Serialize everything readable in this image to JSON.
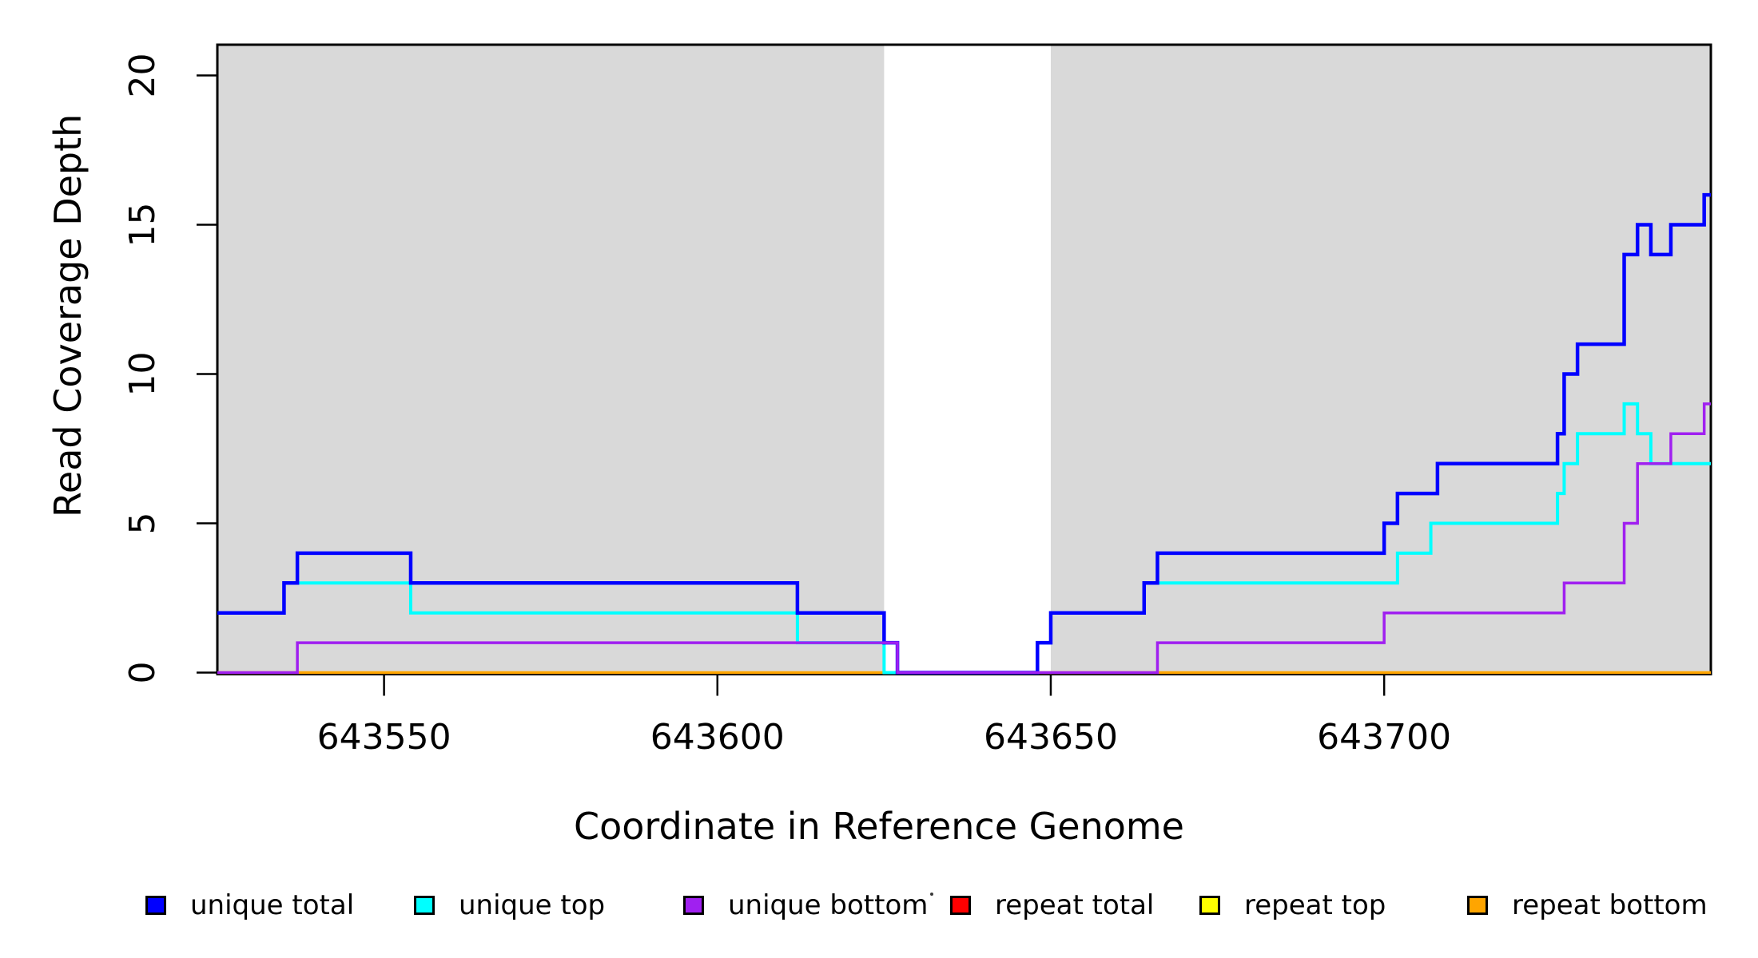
{
  "figure": {
    "x_axis_title": "Coordinate in Reference Genome",
    "y_axis_title": "Read Coverage Depth",
    "legend": [
      {
        "label": "unique total",
        "color": "#0000FF"
      },
      {
        "label": "unique top",
        "color": "#00FFFF"
      },
      {
        "label": "unique bottom",
        "color": "#A020F0"
      },
      {
        "label": "repeat total",
        "color": "#FF0000"
      },
      {
        "label": "repeat top",
        "color": "#FFFF00"
      },
      {
        "label": "repeat bottom",
        "color": "#FFA500"
      }
    ]
  },
  "chart_data": {
    "type": "line",
    "subtype": "step-post",
    "title": "",
    "xlabel": "Coordinate in Reference Genome",
    "ylabel": "Read Coverage Depth",
    "x_range": [
      643525,
      643749
    ],
    "y_range": [
      0,
      21
    ],
    "x_ticks": [
      643550,
      643600,
      643650,
      643700
    ],
    "y_ticks": [
      0,
      5,
      10,
      15,
      20
    ],
    "grid": false,
    "legend_position": "bottom",
    "background_color": "#FFFFFF",
    "shaded_regions": [
      {
        "x0": 643525,
        "x1": 643625,
        "color": "#D9D9D9",
        "meaning": "covered reference segment"
      },
      {
        "x0": 643650,
        "x1": 643749,
        "color": "#D9D9D9",
        "meaning": "covered reference segment"
      }
    ],
    "series": [
      {
        "name": "repeat total",
        "color": "#FF0000",
        "width": 3,
        "points": [
          [
            643525,
            0
          ]
        ]
      },
      {
        "name": "repeat top",
        "color": "#FFFF00",
        "width": 3,
        "points": [
          [
            643525,
            0
          ]
        ]
      },
      {
        "name": "repeat bottom",
        "color": "#FFA500",
        "width": 3.5,
        "points": [
          [
            643525,
            0
          ]
        ]
      },
      {
        "name": "unique top",
        "color": "#00FFFF",
        "width": 4,
        "points": [
          [
            643525,
            2
          ],
          [
            643535,
            3
          ],
          [
            643554,
            2
          ],
          [
            643612,
            1
          ],
          [
            643625,
            0
          ],
          [
            643648,
            1
          ],
          [
            643650,
            2
          ],
          [
            643664,
            3
          ],
          [
            643702,
            4
          ],
          [
            643707,
            5
          ],
          [
            643726,
            6
          ],
          [
            643727,
            7
          ],
          [
            643729,
            8
          ],
          [
            643736,
            9
          ],
          [
            643738,
            8
          ],
          [
            643740,
            7
          ]
        ]
      },
      {
        "name": "unique total",
        "color": "#0000FF",
        "width": 4.5,
        "points": [
          [
            643525,
            2
          ],
          [
            643535,
            3
          ],
          [
            643537,
            4
          ],
          [
            643554,
            3
          ],
          [
            643612,
            2
          ],
          [
            643625,
            1
          ],
          [
            643627,
            0
          ],
          [
            643648,
            1
          ],
          [
            643650,
            2
          ],
          [
            643664,
            3
          ],
          [
            643666,
            4
          ],
          [
            643700,
            5
          ],
          [
            643702,
            6
          ],
          [
            643708,
            7
          ],
          [
            643726,
            8
          ],
          [
            643727,
            10
          ],
          [
            643729,
            11
          ],
          [
            643736,
            14
          ],
          [
            643738,
            15
          ],
          [
            643740,
            14
          ],
          [
            643743,
            15
          ],
          [
            643748,
            16
          ]
        ]
      },
      {
        "name": "unique bottom",
        "color": "#A020F0",
        "width": 3.5,
        "points": [
          [
            643525,
            0
          ],
          [
            643537,
            1
          ],
          [
            643627,
            0
          ],
          [
            643666,
            1
          ],
          [
            643700,
            2
          ],
          [
            643727,
            3
          ],
          [
            643736,
            5
          ],
          [
            643738,
            7
          ],
          [
            643743,
            8
          ],
          [
            643748,
            9
          ]
        ]
      }
    ]
  }
}
